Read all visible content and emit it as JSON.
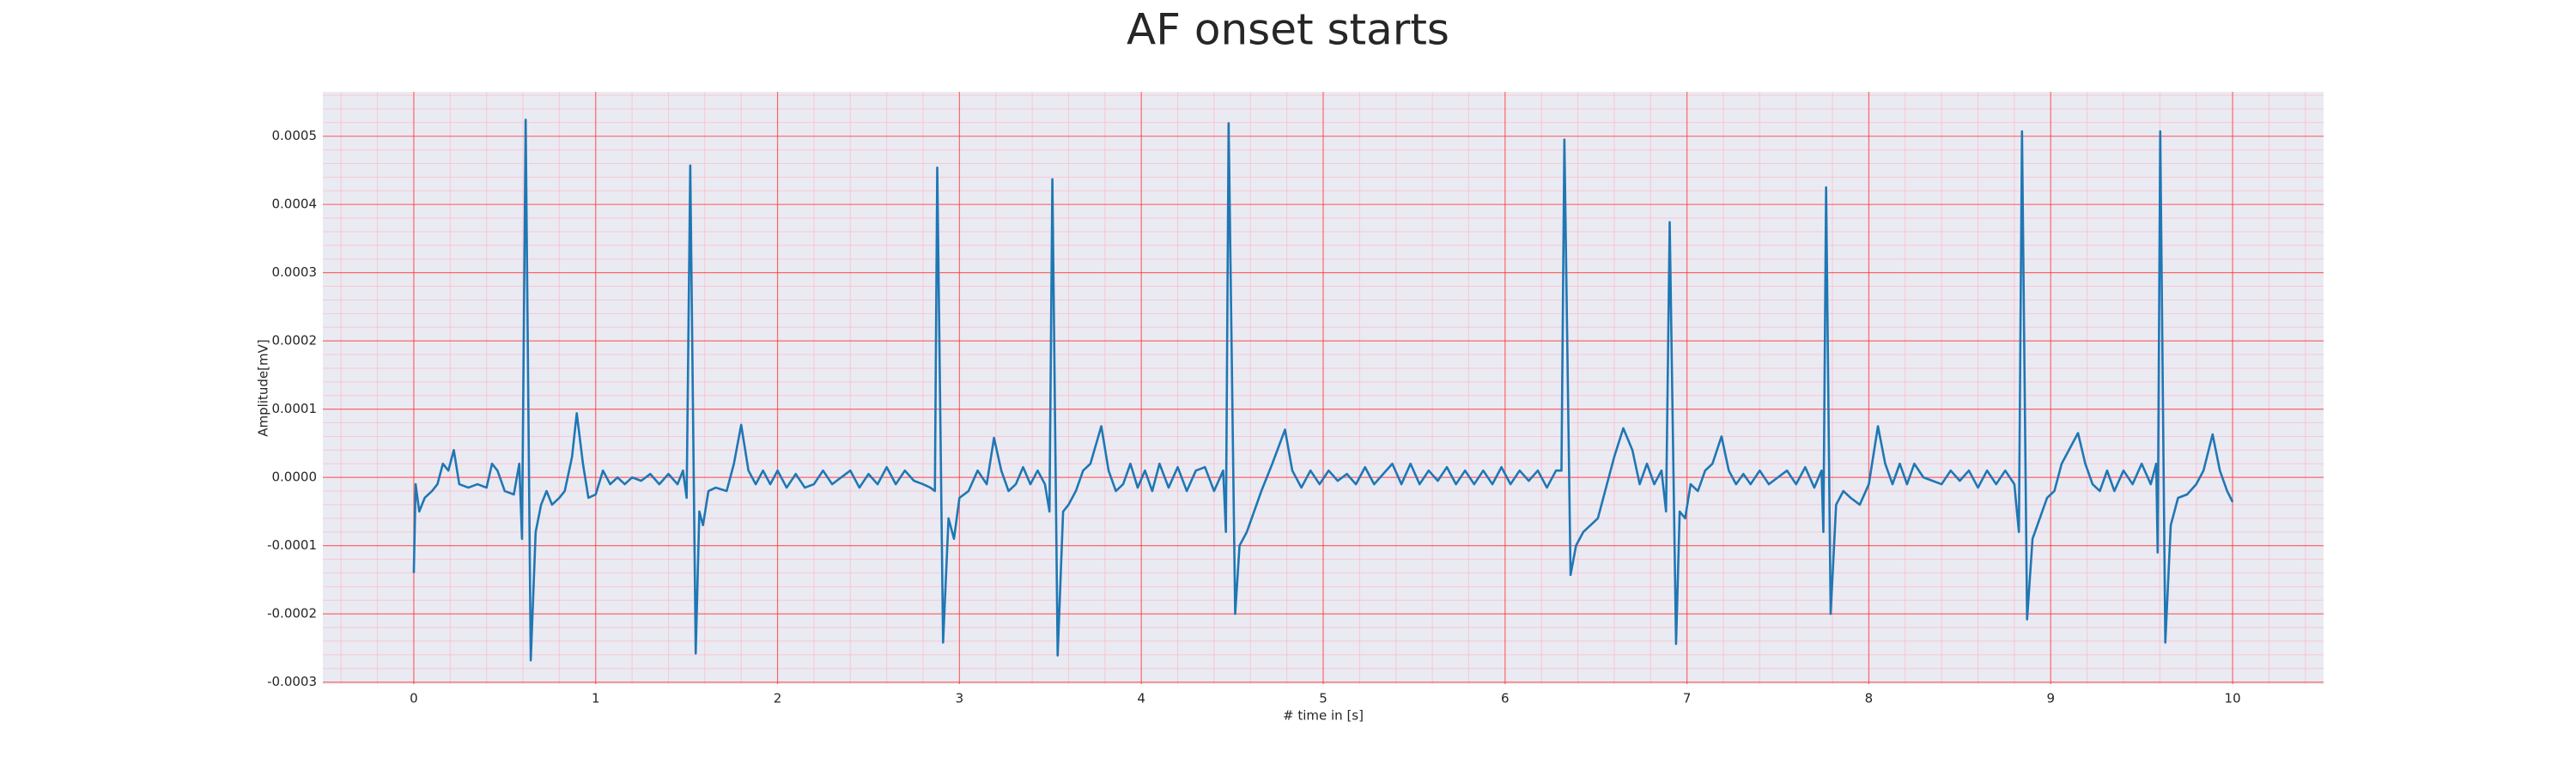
{
  "chart_data": {
    "type": "line",
    "title": "AF onset starts",
    "xlabel": "# time in [s]",
    "ylabel": "Amplitude[mV]",
    "color": "#1f77b4",
    "grid": true,
    "minor_grid": true,
    "xlim": [
      -0.5,
      10.5
    ],
    "ylim": [
      -0.000303,
      0.000565
    ],
    "xticks": [
      0,
      1,
      2,
      3,
      4,
      5,
      6,
      7,
      8,
      9,
      10
    ],
    "yticks": [
      -0.0003,
      -0.0002,
      -0.0001,
      {
        "value": 0,
        "label": "0.0000"
      },
      0.0001,
      0.0002,
      0.0003,
      0.0004,
      0.0005
    ],
    "xminorticks": [
      -0.4,
      -0.2,
      0.2,
      0.4,
      0.6,
      0.8,
      1.2,
      1.4,
      1.6,
      1.8,
      2.2,
      2.4,
      2.6,
      2.8,
      3.2,
      3.4,
      3.6,
      3.8,
      4.2,
      4.4,
      4.6,
      4.8,
      5.2,
      5.4,
      5.6,
      5.8,
      6.2,
      6.4,
      6.6,
      6.8,
      7.2,
      7.4,
      7.6,
      7.8,
      8.2,
      8.4,
      8.6,
      8.8,
      9.2,
      9.4,
      9.6,
      9.8,
      10.2,
      10.4
    ],
    "yminorticks": [
      -0.00028,
      -0.00026,
      -0.00024,
      -0.00022,
      -0.00018,
      -0.00016,
      -0.00014,
      -0.00012,
      -8e-05,
      -6e-05,
      -4e-05,
      -2e-05,
      2e-05,
      4e-05,
      6e-05,
      8e-05,
      0.00012,
      0.00014,
      0.00016,
      0.00018,
      0.00022,
      0.00024,
      0.00026,
      0.00028,
      0.00032,
      0.00034,
      0.00036,
      0.00038,
      0.00042,
      0.00044,
      0.00046,
      0.00048,
      0.00052,
      0.00054,
      0.00056
    ],
    "x": [
      0,
      0.01,
      0.03,
      0.06,
      0.1,
      0.13,
      0.16,
      0.19,
      0.22,
      0.25,
      0.3,
      0.35,
      0.4,
      0.43,
      0.46,
      0.5,
      0.55,
      0.58,
      0.595,
      0.615,
      0.643,
      0.67,
      0.7,
      0.73,
      0.76,
      0.8,
      0.83,
      0.87,
      0.896,
      0.93,
      0.96,
      1.0,
      1.04,
      1.08,
      1.12,
      1.16,
      1.2,
      1.25,
      1.3,
      1.35,
      1.4,
      1.45,
      1.48,
      1.5,
      1.52,
      1.55,
      1.57,
      1.59,
      1.62,
      1.66,
      1.72,
      1.76,
      1.8,
      1.84,
      1.88,
      1.92,
      1.96,
      2.0,
      2.05,
      2.1,
      2.15,
      2.2,
      2.25,
      2.3,
      2.35,
      2.4,
      2.45,
      2.5,
      2.55,
      2.6,
      2.65,
      2.7,
      2.75,
      2.8,
      2.84,
      2.865,
      2.878,
      2.91,
      2.94,
      2.97,
      3.0,
      3.05,
      3.1,
      3.15,
      3.19,
      3.23,
      3.27,
      3.31,
      3.35,
      3.39,
      3.43,
      3.47,
      3.495,
      3.511,
      3.54,
      3.57,
      3.6,
      3.64,
      3.68,
      3.72,
      3.78,
      3.82,
      3.86,
      3.9,
      3.94,
      3.98,
      4.02,
      4.06,
      4.1,
      4.15,
      4.2,
      4.25,
      4.3,
      4.35,
      4.4,
      4.45,
      4.465,
      4.48,
      4.516,
      4.54,
      4.58,
      4.62,
      4.66,
      4.72,
      4.79,
      4.83,
      4.88,
      4.93,
      4.98,
      5.03,
      5.08,
      5.13,
      5.18,
      5.23,
      5.28,
      5.33,
      5.38,
      5.43,
      5.48,
      5.53,
      5.58,
      5.63,
      5.68,
      5.73,
      5.78,
      5.83,
      5.88,
      5.93,
      5.98,
      6.03,
      6.08,
      6.13,
      6.18,
      6.23,
      6.28,
      6.31,
      6.326,
      6.36,
      6.39,
      6.43,
      6.47,
      6.51,
      6.55,
      6.6,
      6.65,
      6.7,
      6.74,
      6.78,
      6.82,
      6.86,
      6.885,
      6.905,
      6.94,
      6.96,
      6.99,
      7.02,
      7.06,
      7.1,
      7.14,
      7.19,
      7.23,
      7.27,
      7.31,
      7.35,
      7.4,
      7.45,
      7.5,
      7.55,
      7.6,
      7.65,
      7.7,
      7.74,
      7.75,
      7.765,
      7.79,
      7.82,
      7.86,
      7.9,
      7.95,
      8.0,
      8.05,
      8.09,
      8.13,
      8.17,
      8.21,
      8.25,
      8.3,
      8.35,
      8.4,
      8.45,
      8.5,
      8.55,
      8.6,
      8.65,
      8.7,
      8.75,
      8.8,
      8.825,
      8.842,
      8.87,
      8.9,
      8.94,
      8.98,
      9.02,
      9.06,
      9.1,
      9.15,
      9.19,
      9.23,
      9.27,
      9.31,
      9.35,
      9.4,
      9.45,
      9.5,
      9.55,
      9.58,
      9.588,
      9.602,
      9.63,
      9.66,
      9.7,
      9.75,
      9.8,
      9.84,
      9.89,
      9.93,
      9.97,
      10.0
    ],
    "values": [
      -0.00014,
      -1e-05,
      -5e-05,
      -3e-05,
      -2e-05,
      -1e-05,
      2e-05,
      1e-05,
      4e-05,
      -1e-05,
      -1.5e-05,
      -1e-05,
      -1.5e-05,
      2e-05,
      1e-05,
      -2e-05,
      -2.5e-05,
      2e-05,
      -9e-05,
      0.000524,
      -0.000268,
      -8e-05,
      -4e-05,
      -2e-05,
      -4e-05,
      -3e-05,
      -2e-05,
      3e-05,
      9.4e-05,
      2e-05,
      -3e-05,
      -2.5e-05,
      1e-05,
      -1e-05,
      0,
      -1e-05,
      0,
      -5e-06,
      5e-06,
      -1e-05,
      5e-06,
      -1e-05,
      1e-05,
      -3e-05,
      0.000457,
      -0.000258,
      -5e-05,
      -7e-05,
      -2e-05,
      -1.5e-05,
      -2e-05,
      2e-05,
      7.7e-05,
      1e-05,
      -1e-05,
      1e-05,
      -1e-05,
      1e-05,
      -1.5e-05,
      5e-06,
      -1.5e-05,
      -1e-05,
      1e-05,
      -1e-05,
      0,
      1e-05,
      -1.5e-05,
      5e-06,
      -1e-05,
      1.5e-05,
      -1e-05,
      1e-05,
      -5e-06,
      -1e-05,
      -1.5e-05,
      -2e-05,
      0.000454,
      -0.000242,
      -6e-05,
      -9e-05,
      -3e-05,
      -2e-05,
      1e-05,
      -1e-05,
      5.8e-05,
      1e-05,
      -2e-05,
      -1e-05,
      1.5e-05,
      -1e-05,
      1e-05,
      -1e-05,
      -5e-05,
      0.000437,
      -0.000261,
      -5e-05,
      -4e-05,
      -2e-05,
      1e-05,
      2e-05,
      7.5e-05,
      1e-05,
      -2e-05,
      -1e-05,
      2e-05,
      -1.5e-05,
      1e-05,
      -2e-05,
      2e-05,
      -1.5e-05,
      1.5e-05,
      -2e-05,
      1e-05,
      1.5e-05,
      -2e-05,
      1e-05,
      -8e-05,
      0.000519,
      -0.0002,
      -0.0001,
      -8e-05,
      -5e-05,
      -2e-05,
      2e-05,
      7e-05,
      1e-05,
      -1.5e-05,
      1e-05,
      -1e-05,
      1e-05,
      -5e-06,
      5e-06,
      -1e-05,
      1.5e-05,
      -1e-05,
      5e-06,
      2e-05,
      -1e-05,
      2e-05,
      -1e-05,
      1e-05,
      -5e-06,
      1.5e-05,
      -1e-05,
      1e-05,
      -1e-05,
      1e-05,
      -1e-05,
      1.5e-05,
      -1e-05,
      1e-05,
      -5e-06,
      1e-05,
      -1.5e-05,
      1e-05,
      1e-05,
      0.000495,
      -0.000143,
      -0.0001,
      -8e-05,
      -7e-05,
      -6e-05,
      -2e-05,
      3e-05,
      7.2e-05,
      4e-05,
      -1e-05,
      2e-05,
      -1e-05,
      1e-05,
      -5e-05,
      0.000374,
      -0.000244,
      -5e-05,
      -6e-05,
      -1e-05,
      -2e-05,
      1e-05,
      2e-05,
      6e-05,
      1e-05,
      -1e-05,
      5e-06,
      -1e-05,
      1e-05,
      -1e-05,
      0,
      1e-05,
      -1e-05,
      1.5e-05,
      -1.5e-05,
      1e-05,
      -8e-05,
      0.000425,
      -0.0002,
      -4e-05,
      -2e-05,
      -3e-05,
      -4e-05,
      -1e-05,
      7.5e-05,
      2e-05,
      -1e-05,
      2e-05,
      -1e-05,
      2e-05,
      0,
      -5e-06,
      -1e-05,
      1e-05,
      -5e-06,
      1e-05,
      -1.5e-05,
      1e-05,
      -1e-05,
      1e-05,
      -1e-05,
      -8e-05,
      0.000507,
      -0.000208,
      -9e-05,
      -6e-05,
      -3e-05,
      -2e-05,
      2e-05,
      4e-05,
      6.5e-05,
      2e-05,
      -1e-05,
      -2e-05,
      1e-05,
      -2e-05,
      1e-05,
      -1e-05,
      2e-05,
      -1e-05,
      2e-05,
      -0.00011,
      0.000507,
      -0.000242,
      -7e-05,
      -3e-05,
      -2.5e-05,
      -1e-05,
      1e-05,
      6.3e-05,
      1e-05,
      -2e-05,
      -3.6e-05
    ]
  }
}
